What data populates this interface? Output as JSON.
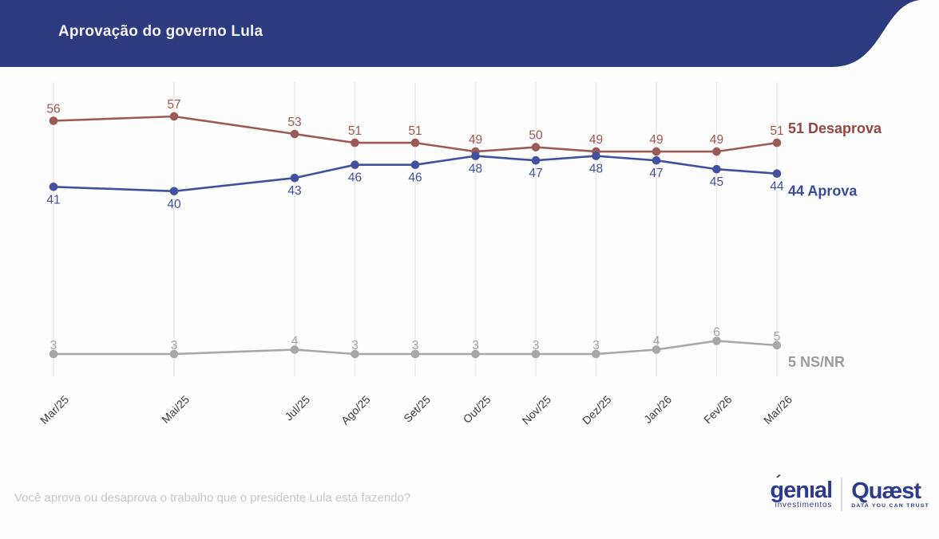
{
  "header": {
    "title": "Aprovação do governo Lula",
    "banner_color": "#2c3a80"
  },
  "chart_data": {
    "type": "line",
    "title": "Aprovação do governo Lula",
    "categories": [
      "Mar/25",
      "Mai/25",
      "Jul/25",
      "Ago/25",
      "Set/25",
      "Out/25",
      "Nov/25",
      "Dez/25",
      "Jan/26",
      "Fev/26",
      "Mar/26"
    ],
    "month_offsets": [
      0,
      2,
      4,
      5,
      6,
      7,
      8,
      9,
      10,
      11,
      12
    ],
    "series": [
      {
        "name": "Desaprova",
        "values": [
          56,
          57,
          53,
          51,
          51,
          49,
          50,
          49,
          49,
          49,
          51
        ],
        "color": "#9b5a53",
        "label_color": "#9e574f",
        "end_color": "#95463f",
        "value_label_position": "above",
        "value_label_dy": -10,
        "end_label_dy": -12,
        "end_label": "51 Desaprova"
      },
      {
        "name": "Aprova",
        "values": [
          41,
          40,
          43,
          46,
          46,
          48,
          47,
          48,
          47,
          45,
          44
        ],
        "color": "#4250a0",
        "label_color": "#4250a0",
        "end_color": "#3a4a9c",
        "value_label_position": "below",
        "value_label_dy": 21,
        "end_label_dy": 28,
        "end_label": "44 Aprova"
      },
      {
        "name": "NS/NR",
        "values": [
          3,
          3,
          4,
          3,
          3,
          3,
          3,
          3,
          4,
          6,
          5
        ],
        "color": "#a7a7a7",
        "label_color": "#a2a2a2",
        "end_color": "#9b9b9b",
        "value_label_position": "above",
        "value_label_dy": -6,
        "end_label_dy": 27,
        "end_label": "5 NS/NR"
      }
    ],
    "ylim": [
      0,
      100
    ],
    "grid": "vertical",
    "gridline_color": "#ebebeb",
    "legend_position": "right-end-labels"
  },
  "footer": {
    "question": "Você aprova ou desaprova o trabalho que o presidente Lula está fazendo?",
    "logos": {
      "genial": {
        "accent": "´",
        "name": "genıal",
        "subtitle": "investimentos"
      },
      "quaest": {
        "name": "Quæst",
        "tagline": "DATA YOU CAN TRUST"
      }
    }
  }
}
